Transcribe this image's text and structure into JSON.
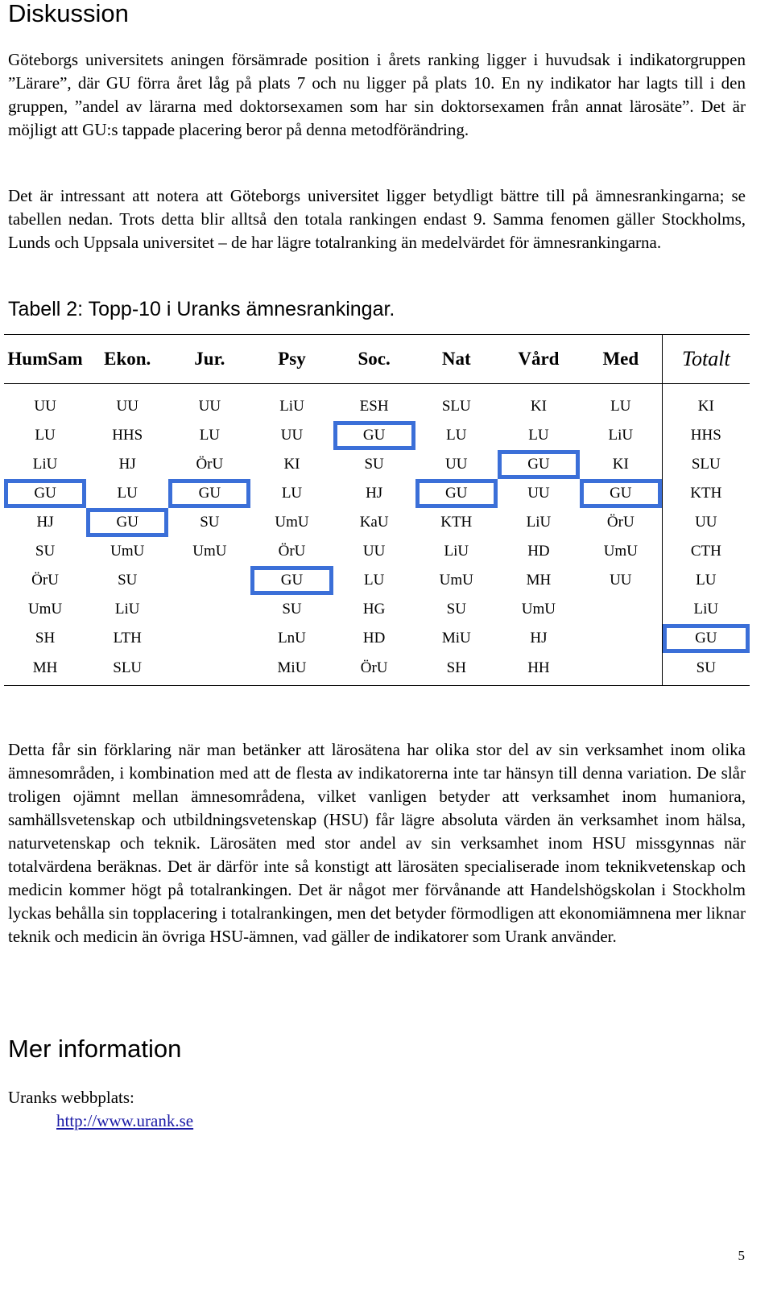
{
  "heading_discussion": "Diskussion",
  "para1": "Göteborgs universitets aningen försämrade position i årets ranking ligger i huvudsak i indikatorgruppen ”Lärare”, där GU förra året låg på plats 7 och nu ligger på plats 10. En ny indikator har lagts till i den gruppen, ”andel av lärarna med doktorsexamen som har sin doktorsexamen från annat lärosäte”. Det är möjligt att GU:s tappade placering beror på denna metodförändring.",
  "para2": "Det är intressant att notera att Göteborgs universitet ligger betydligt bättre till på ämnesrankingarna; se tabellen nedan. Trots detta blir alltså den totala rankingen endast 9. Samma fenomen gäller Stockholms, Lunds och Uppsala universitet – de har lägre totalranking än medelvärdet för ämnesrankingarna.",
  "table_caption": "Tabell 2: Topp-10 i Uranks ämnesrankingar.",
  "table": {
    "headers": [
      "HumSam",
      "Ekon.",
      "Jur.",
      "Psy",
      "Soc.",
      "Nat",
      "Vård",
      "Med",
      "Totalt"
    ],
    "rows": [
      [
        "UU",
        "UU",
        "UU",
        "LiU",
        "ESH",
        "SLU",
        "KI",
        "LU",
        "KI"
      ],
      [
        "LU",
        "HHS",
        "LU",
        "UU",
        "GU",
        "LU",
        "LU",
        "LiU",
        "HHS"
      ],
      [
        "LiU",
        "HJ",
        "ÖrU",
        "KI",
        "SU",
        "UU",
        "GU",
        "KI",
        "SLU"
      ],
      [
        "GU",
        "LU",
        "GU",
        "LU",
        "HJ",
        "GU",
        "UU",
        "GU",
        "KTH"
      ],
      [
        "HJ",
        "GU",
        "SU",
        "UmU",
        "KaU",
        "KTH",
        "LiU",
        "ÖrU",
        "UU"
      ],
      [
        "SU",
        "UmU",
        "UmU",
        "ÖrU",
        "UU",
        "LiU",
        "HD",
        "UmU",
        "CTH"
      ],
      [
        "ÖrU",
        "SU",
        "",
        "GU",
        "LU",
        "UmU",
        "MH",
        "UU",
        "LU"
      ],
      [
        "UmU",
        "LiU",
        "",
        "SU",
        "HG",
        "SU",
        "UmU",
        "",
        "LiU"
      ],
      [
        "SH",
        "LTH",
        "",
        "LnU",
        "HD",
        "MiU",
        "HJ",
        "",
        "GU"
      ],
      [
        "MH",
        "SLU",
        "",
        "MiU",
        "ÖrU",
        "SH",
        "HH",
        "",
        "SU"
      ]
    ],
    "highlight_color": "#3b6fd8",
    "highlighted_cells": [
      [
        1,
        4
      ],
      [
        2,
        6
      ],
      [
        3,
        0
      ],
      [
        3,
        2
      ],
      [
        3,
        5
      ],
      [
        3,
        7
      ],
      [
        4,
        1
      ],
      [
        6,
        3
      ],
      [
        8,
        8
      ]
    ]
  },
  "para3": "Detta får sin förklaring när man betänker att lärosätena har olika stor del av sin verksamhet inom olika ämnesområden, i kombination med att de flesta av indikatorerna inte tar hänsyn till denna variation. De slår troligen ojämnt mellan ämnesområdena, vilket vanligen betyder att verksamhet inom humaniora, samhällsvetenskap och utbildningsvetenskap (HSU) får lägre absoluta värden än verksamhet inom hälsa, naturvetenskap och teknik. Lärosäten med stor andel av sin verksamhet inom HSU missgynnas när totalvärdena beräknas. Det är därför inte så konstigt att lärosäten specialiserade inom teknikvetenskap och medicin kommer högt på totalrankingen. Det är något mer förvånande att Handelshögskolan i Stockholm lyckas behålla sin topplacering i totalrankingen, men det betyder förmodligen att ekonomiämnena mer liknar teknik och medicin än övriga HSU-ämnen, vad gäller de indikatorer som Urank använder.",
  "heading_more_info": "Mer information",
  "website_label": "Uranks webbplats:",
  "website_link": "http://www.urank.se",
  "page_number": "5"
}
